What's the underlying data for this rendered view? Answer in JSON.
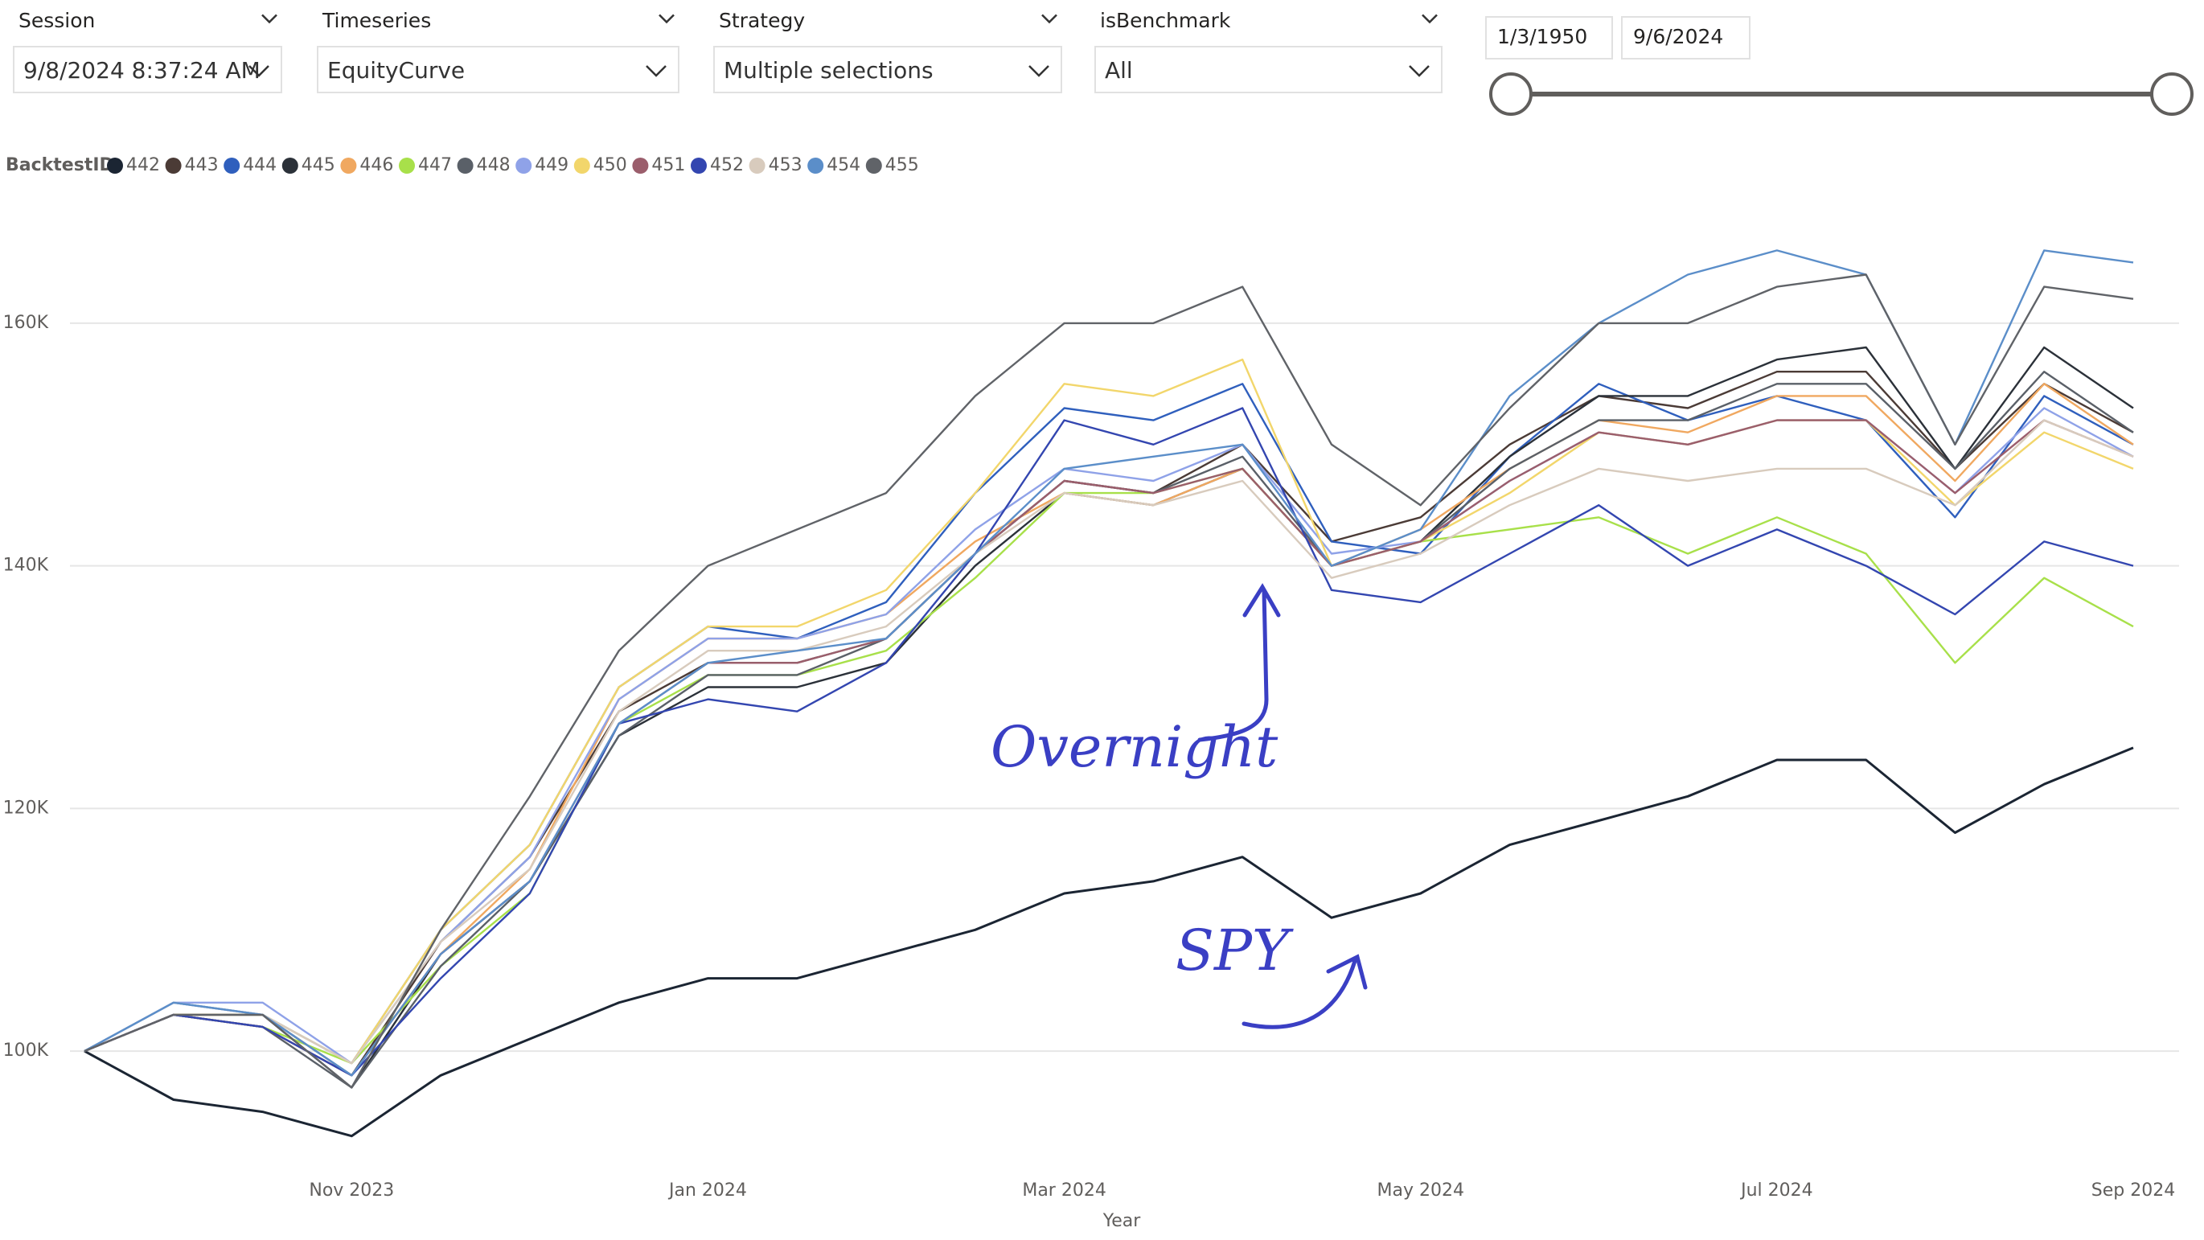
{
  "filters": [
    {
      "label": "Session",
      "value": "9/8/2024 8:37:24 AM"
    },
    {
      "label": "Timeseries",
      "value": "EquityCurve"
    },
    {
      "label": "Strategy",
      "value": "Multiple selections"
    },
    {
      "label": "isBenchmark",
      "value": "All"
    }
  ],
  "date_range": {
    "start": "1/3/1950",
    "end": "9/6/2024"
  },
  "chart_data": {
    "type": "line",
    "legend_title": "BacktestID",
    "x_label": "Year",
    "annotations": [
      "Overnight",
      "SPY"
    ],
    "categories": [
      null,
      null,
      null,
      "Nov 2023",
      null,
      null,
      null,
      "Jan 2024",
      null,
      null,
      null,
      "Mar 2024",
      null,
      null,
      null,
      "May 2024",
      null,
      null,
      null,
      "Jul 2024",
      null,
      null,
      null,
      "Sep 2024"
    ],
    "ylim": [
      90000,
      170000
    ],
    "yticks": [
      {
        "value": 100000,
        "label": "100K"
      },
      {
        "value": 120000,
        "label": "120K"
      },
      {
        "value": 140000,
        "label": "140K"
      },
      {
        "value": 160000,
        "label": "160K"
      }
    ],
    "grid": true,
    "series": [
      {
        "name": "442",
        "color": "#1b2533",
        "values": [
          100000,
          96000,
          95000,
          93000,
          98000,
          101000,
          104000,
          106000,
          106000,
          108000,
          110000,
          113000,
          114000,
          116000,
          111000,
          113000,
          117000,
          119000,
          121000,
          124000,
          124000,
          118000,
          122000,
          125000
        ]
      },
      {
        "name": "443",
        "color": "#4b3b36",
        "values": [
          100000,
          103000,
          103000,
          98000,
          109000,
          116000,
          128000,
          132000,
          132000,
          134000,
          141000,
          147000,
          146000,
          150000,
          142000,
          144000,
          150000,
          154000,
          153000,
          156000,
          156000,
          148000,
          155000,
          151000
        ]
      },
      {
        "name": "444",
        "color": "#2f5fbd",
        "values": [
          100000,
          104000,
          103000,
          99000,
          110000,
          117000,
          130000,
          135000,
          134000,
          137000,
          146000,
          153000,
          152000,
          155000,
          142000,
          141000,
          149000,
          155000,
          152000,
          154000,
          152000,
          144000,
          154000,
          150000
        ]
      },
      {
        "name": "445",
        "color": "#2b3139",
        "values": [
          100000,
          103000,
          103000,
          97000,
          108000,
          114000,
          126000,
          130000,
          130000,
          132000,
          140000,
          146000,
          145000,
          148000,
          140000,
          142000,
          149000,
          154000,
          154000,
          157000,
          158000,
          148000,
          158000,
          153000
        ]
      },
      {
        "name": "446",
        "color": "#f0a860",
        "values": [
          100000,
          103000,
          102000,
          98000,
          108000,
          115000,
          129000,
          134000,
          134000,
          136000,
          142000,
          146000,
          145000,
          148000,
          140000,
          143000,
          148000,
          152000,
          151000,
          154000,
          154000,
          147000,
          155000,
          150000
        ]
      },
      {
        "name": "447",
        "color": "#a8e04a",
        "values": [
          100000,
          103000,
          102000,
          99000,
          107000,
          113000,
          127000,
          131000,
          131000,
          133000,
          139000,
          146000,
          146000,
          148000,
          140000,
          142000,
          143000,
          144000,
          141000,
          144000,
          141000,
          132000,
          139000,
          135000
        ]
      },
      {
        "name": "448",
        "color": "#5a6068",
        "values": [
          100000,
          103000,
          102000,
          97000,
          107000,
          114000,
          126000,
          131000,
          131000,
          134000,
          141000,
          147000,
          146000,
          149000,
          140000,
          142000,
          148000,
          152000,
          152000,
          155000,
          155000,
          148000,
          156000,
          151000
        ]
      },
      {
        "name": "449",
        "color": "#8fa2e8",
        "values": [
          100000,
          104000,
          104000,
          99000,
          109000,
          116000,
          129000,
          134000,
          134000,
          136000,
          143000,
          148000,
          147000,
          150000,
          141000,
          142000,
          147000,
          151000,
          150000,
          152000,
          152000,
          146000,
          153000,
          149000
        ]
      },
      {
        "name": "450",
        "color": "#f2d66b",
        "values": [
          100000,
          103000,
          103000,
          99000,
          110000,
          117000,
          130000,
          135000,
          135000,
          138000,
          146000,
          155000,
          154000,
          157000,
          140000,
          142000,
          146000,
          151000,
          150000,
          152000,
          152000,
          145000,
          151000,
          148000
        ]
      },
      {
        "name": "451",
        "color": "#9b5e6c",
        "values": [
          100000,
          103000,
          102000,
          98000,
          108000,
          114000,
          127000,
          132000,
          132000,
          134000,
          141000,
          147000,
          146000,
          148000,
          140000,
          142000,
          147000,
          151000,
          150000,
          152000,
          152000,
          146000,
          152000,
          149000
        ]
      },
      {
        "name": "452",
        "color": "#3346b0",
        "values": [
          100000,
          103000,
          102000,
          98000,
          106000,
          113000,
          127000,
          129000,
          128000,
          132000,
          141000,
          152000,
          150000,
          153000,
          138000,
          137000,
          141000,
          145000,
          140000,
          143000,
          140000,
          136000,
          142000,
          140000
        ]
      },
      {
        "name": "453",
        "color": "#d8cbbd",
        "values": [
          100000,
          104000,
          103000,
          99000,
          109000,
          115000,
          128000,
          133000,
          133000,
          135000,
          141000,
          146000,
          145000,
          147000,
          139000,
          141000,
          145000,
          148000,
          147000,
          148000,
          148000,
          145000,
          152000,
          149000
        ]
      },
      {
        "name": "454",
        "color": "#5b8ec9",
        "values": [
          100000,
          104000,
          103000,
          98000,
          108000,
          114000,
          127000,
          132000,
          133000,
          134000,
          141000,
          148000,
          149000,
          150000,
          140000,
          143000,
          154000,
          160000,
          164000,
          166000,
          164000,
          150000,
          166000,
          165000
        ]
      },
      {
        "name": "455",
        "color": "#606368",
        "values": [
          100000,
          103000,
          103000,
          97000,
          110000,
          121000,
          133000,
          140000,
          143000,
          146000,
          154000,
          160000,
          160000,
          163000,
          150000,
          145000,
          153000,
          160000,
          160000,
          163000,
          164000,
          150000,
          163000,
          162000
        ]
      }
    ]
  }
}
